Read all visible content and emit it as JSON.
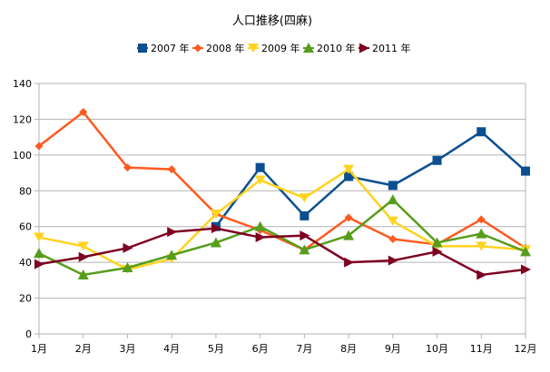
{
  "chart_data": {
    "type": "line",
    "title": "人口推移(四麻)",
    "xlabel": "",
    "ylabel": "",
    "categories": [
      "1月",
      "2月",
      "3月",
      "4月",
      "5月",
      "6月",
      "7月",
      "8月",
      "9月",
      "10月",
      "11月",
      "12月"
    ],
    "ylim": [
      0,
      140
    ],
    "yticks": [
      0,
      20,
      40,
      60,
      80,
      100,
      120,
      140
    ],
    "grid": "horizontal",
    "legend_position": "top",
    "series": [
      {
        "name": "2007 年",
        "color": "#0b4f91",
        "marker": "square",
        "values": [
          null,
          null,
          null,
          null,
          60,
          93,
          66,
          88,
          83,
          97,
          113,
          91
        ]
      },
      {
        "name": "2008 年",
        "color": "#ff5a1f",
        "marker": "diamond",
        "values": [
          105,
          124,
          93,
          92,
          67,
          58,
          47,
          65,
          53,
          50,
          64,
          48
        ]
      },
      {
        "name": "2009 年",
        "color": "#ffd320",
        "marker": "triangle-down",
        "values": [
          54,
          49,
          36,
          42,
          67,
          86,
          76,
          92,
          63,
          49,
          49,
          47
        ]
      },
      {
        "name": "2010 年",
        "color": "#579d1c",
        "marker": "triangle-up",
        "values": [
          45,
          33,
          37,
          44,
          51,
          60,
          47,
          55,
          75,
          51,
          56,
          46
        ]
      },
      {
        "name": "2011 年",
        "color": "#7e0021",
        "marker": "triangle-right",
        "values": [
          39,
          43,
          48,
          57,
          59,
          54,
          55,
          40,
          41,
          46,
          33,
          36
        ]
      }
    ]
  }
}
